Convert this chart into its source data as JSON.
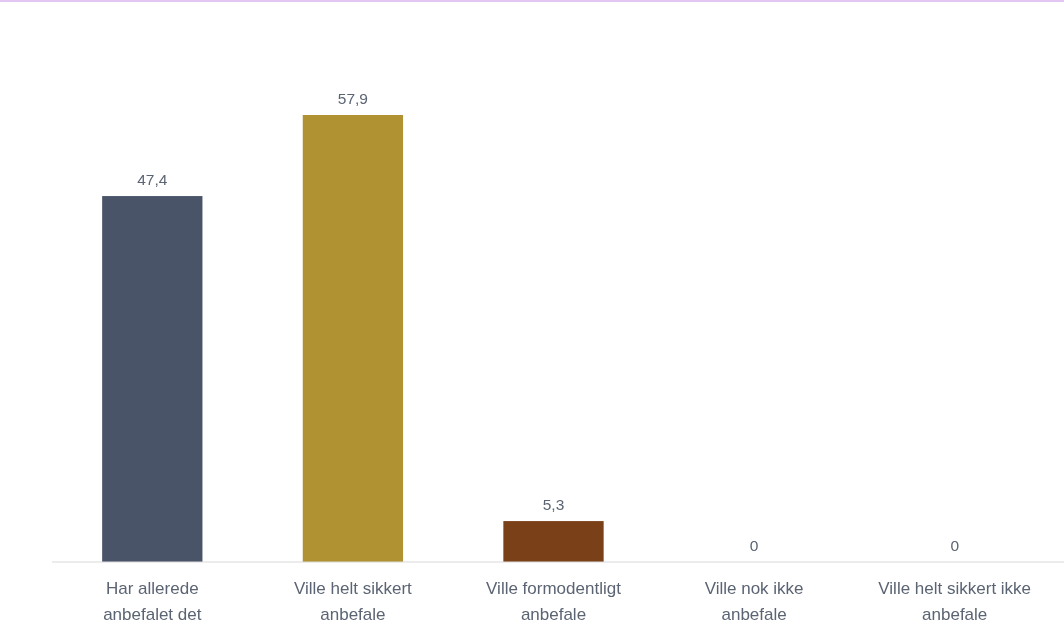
{
  "chart_data": {
    "type": "bar",
    "categories": [
      "Har allerede anbefalet det",
      "Ville helt sikkert anbefale",
      "Ville formodentligt anbefale",
      "Ville nok ikke anbefale",
      "Ville helt sikkert ikke anbefale"
    ],
    "values": [
      47.4,
      57.9,
      5.3,
      0,
      0
    ],
    "colors": [
      "#4a5468",
      "#b09232",
      "#7a4118",
      "#7a4118",
      "#7a4118"
    ],
    "value_labels": [
      "47,4",
      "57,9",
      "5,3",
      "0",
      "0"
    ]
  }
}
